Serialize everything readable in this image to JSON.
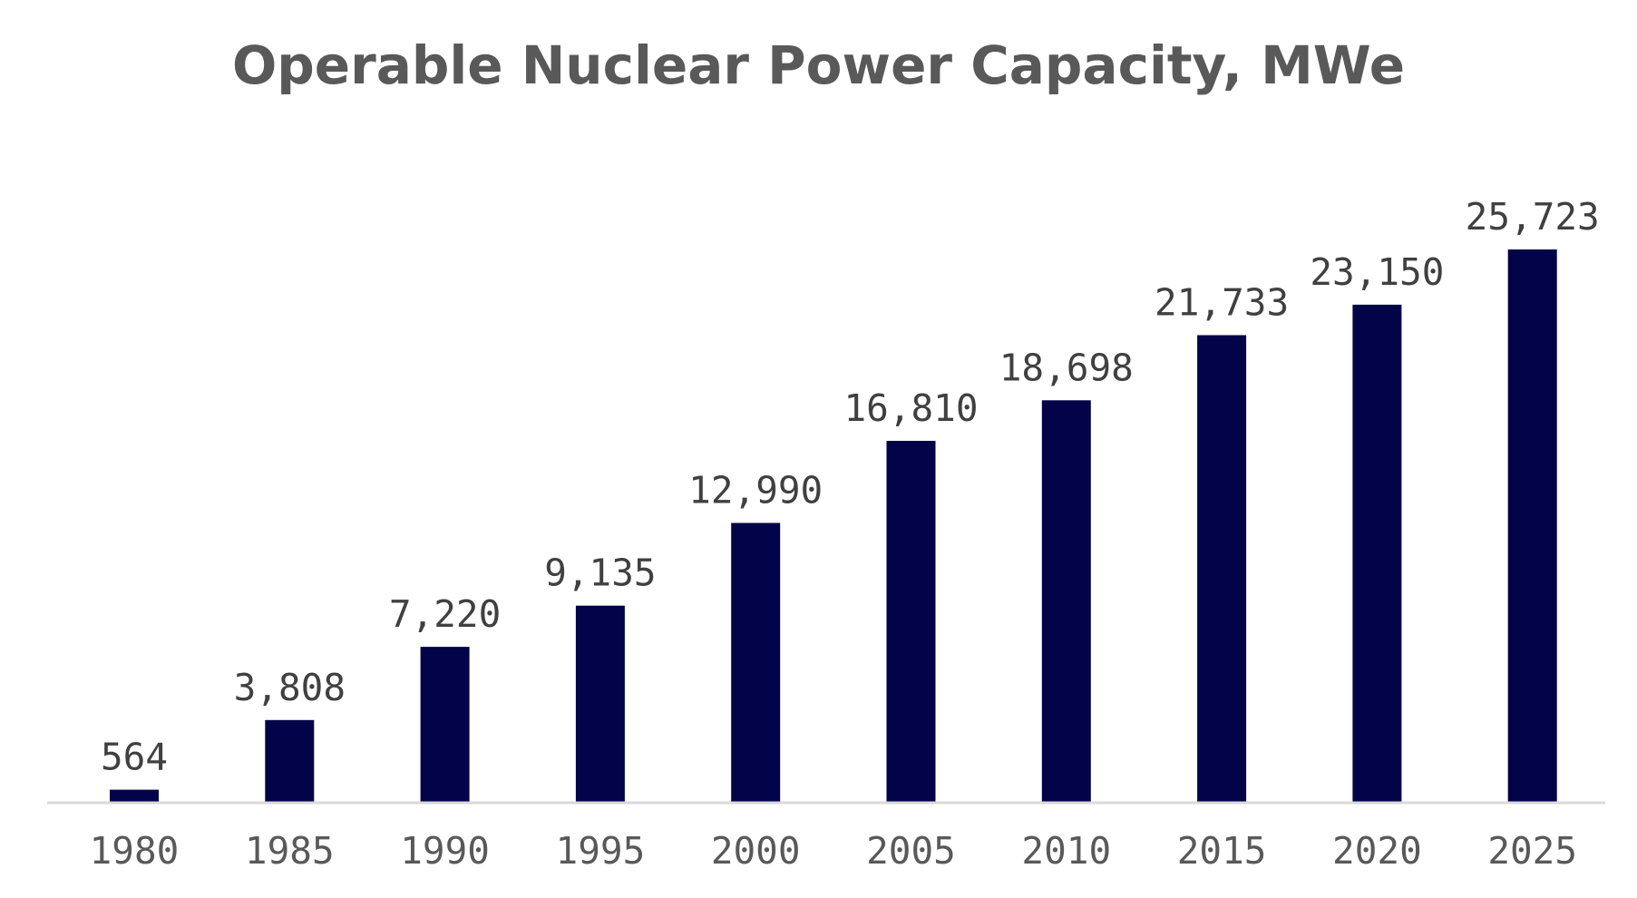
{
  "chart_data": {
    "type": "bar",
    "title": "Operable Nuclear Power Capacity, MWe",
    "xlabel": "",
    "ylabel": "",
    "categories": [
      "1980",
      "1985",
      "1990",
      "1995",
      "2000",
      "2005",
      "2010",
      "2015",
      "2020",
      "2025"
    ],
    "values": [
      564,
      3808,
      7220,
      9135,
      12990,
      16810,
      18698,
      21733,
      23150,
      25723
    ],
    "value_labels": [
      "564",
      "3,808",
      "7,220",
      "9,135",
      "12,990",
      "16,810",
      "18,698",
      "21,733",
      "23,150",
      "25,723"
    ],
    "ylim": [
      0,
      26000
    ],
    "grid": false,
    "legend": "none",
    "colors": {
      "bar": "#03034a",
      "axis": "#d9d9d9",
      "title": "#595959",
      "label": "#404040",
      "tick": "#595959"
    }
  }
}
